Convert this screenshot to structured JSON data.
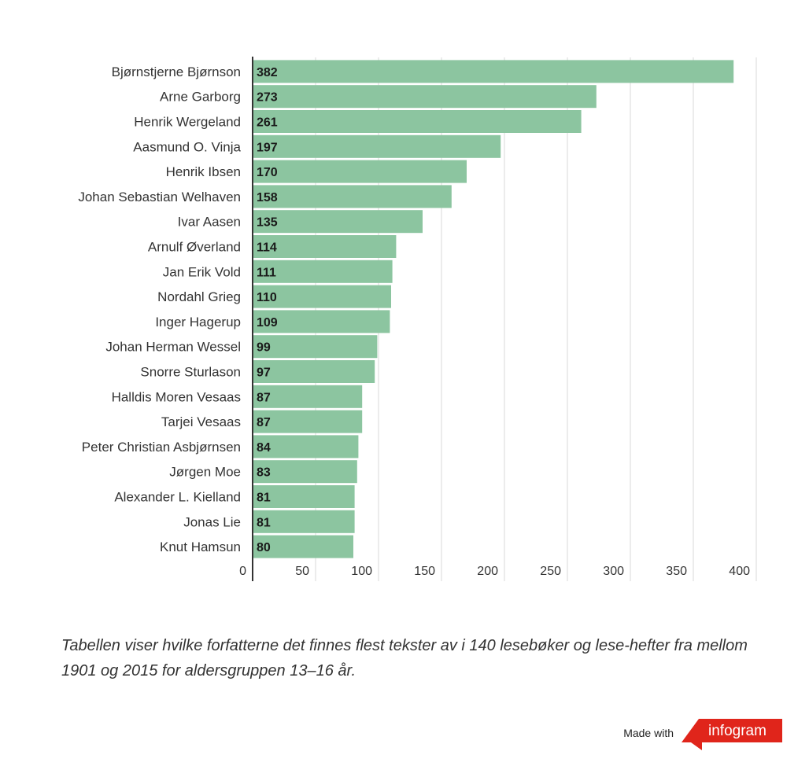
{
  "chart_data": {
    "type": "bar",
    "orientation": "horizontal",
    "categories": [
      "Bjørnstjerne Bjørnson",
      "Arne Garborg",
      "Henrik Wergeland",
      "Aasmund O. Vinja",
      "Henrik Ibsen",
      "Johan Sebastian Welhaven",
      "Ivar Aasen",
      "Arnulf Øverland",
      "Jan Erik Vold",
      "Nordahl Grieg",
      "Inger Hagerup",
      "Johan Herman Wessel",
      "Snorre Sturlason",
      "Halldis Moren Vesaas",
      "Tarjei Vesaas",
      "Peter Christian Asbjørnsen",
      "Jørgen Moe",
      "Alexander L. Kielland",
      "Jonas Lie",
      "Knut Hamsun"
    ],
    "values": [
      382,
      273,
      261,
      197,
      170,
      158,
      135,
      114,
      111,
      110,
      109,
      99,
      97,
      87,
      87,
      84,
      83,
      81,
      81,
      80
    ],
    "x_ticks": [
      "0",
      "50",
      "100",
      "150",
      "200",
      "250",
      "300",
      "350",
      "400"
    ],
    "xlim": [
      0,
      400
    ],
    "grid": true,
    "bar_color": "#8cc5a0",
    "data_labels": true
  },
  "caption": "Tabellen viser hvilke forfatterne det finnes flest tekster av i 140 lesebøker og lese-hefter fra mellom 1901 og 2015 for aldersgruppen 13–16 år.",
  "footer": {
    "made_with": "Made with",
    "brand": "infogram",
    "brand_color": "#e0251b"
  }
}
